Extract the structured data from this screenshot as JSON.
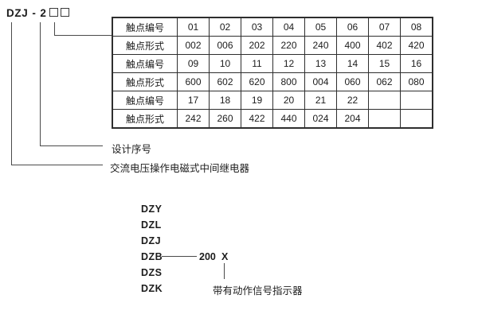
{
  "model": {
    "prefix": "DZJ",
    "dash": "-",
    "series": "2",
    "box_count": 2
  },
  "table": {
    "rows": [
      {
        "label": "触点编号",
        "values": [
          "01",
          "02",
          "03",
          "04",
          "05",
          "06",
          "07",
          "08"
        ]
      },
      {
        "label": "触点形式",
        "values": [
          "002",
          "006",
          "202",
          "220",
          "240",
          "400",
          "402",
          "420"
        ]
      },
      {
        "label": "触点编号",
        "values": [
          "09",
          "10",
          "11",
          "12",
          "13",
          "14",
          "15",
          "16"
        ]
      },
      {
        "label": "触点形式",
        "values": [
          "600",
          "602",
          "620",
          "800",
          "004",
          "060",
          "062",
          "080"
        ]
      },
      {
        "label": "触点编号",
        "values": [
          "17",
          "18",
          "19",
          "20",
          "21",
          "22",
          "",
          ""
        ]
      },
      {
        "label": "触点形式",
        "values": [
          "242",
          "260",
          "422",
          "440",
          "024",
          "204",
          "",
          ""
        ]
      }
    ]
  },
  "callouts": {
    "design_serial": "设计序号",
    "relay_description": "交流电压操作电磁式中间继电器"
  },
  "model_list": {
    "items": [
      "DZY",
      "DZL",
      "DZJ",
      "DZB",
      "DZS",
      "DZK"
    ],
    "dzb_code": "200",
    "dzb_variable": "X",
    "indicator_note": "带有动作信号指示器"
  },
  "colors": {
    "line": "#4a4a4a",
    "table_border": "#2e2e2e",
    "text": "#1c1c1c",
    "background": "#ffffff"
  }
}
